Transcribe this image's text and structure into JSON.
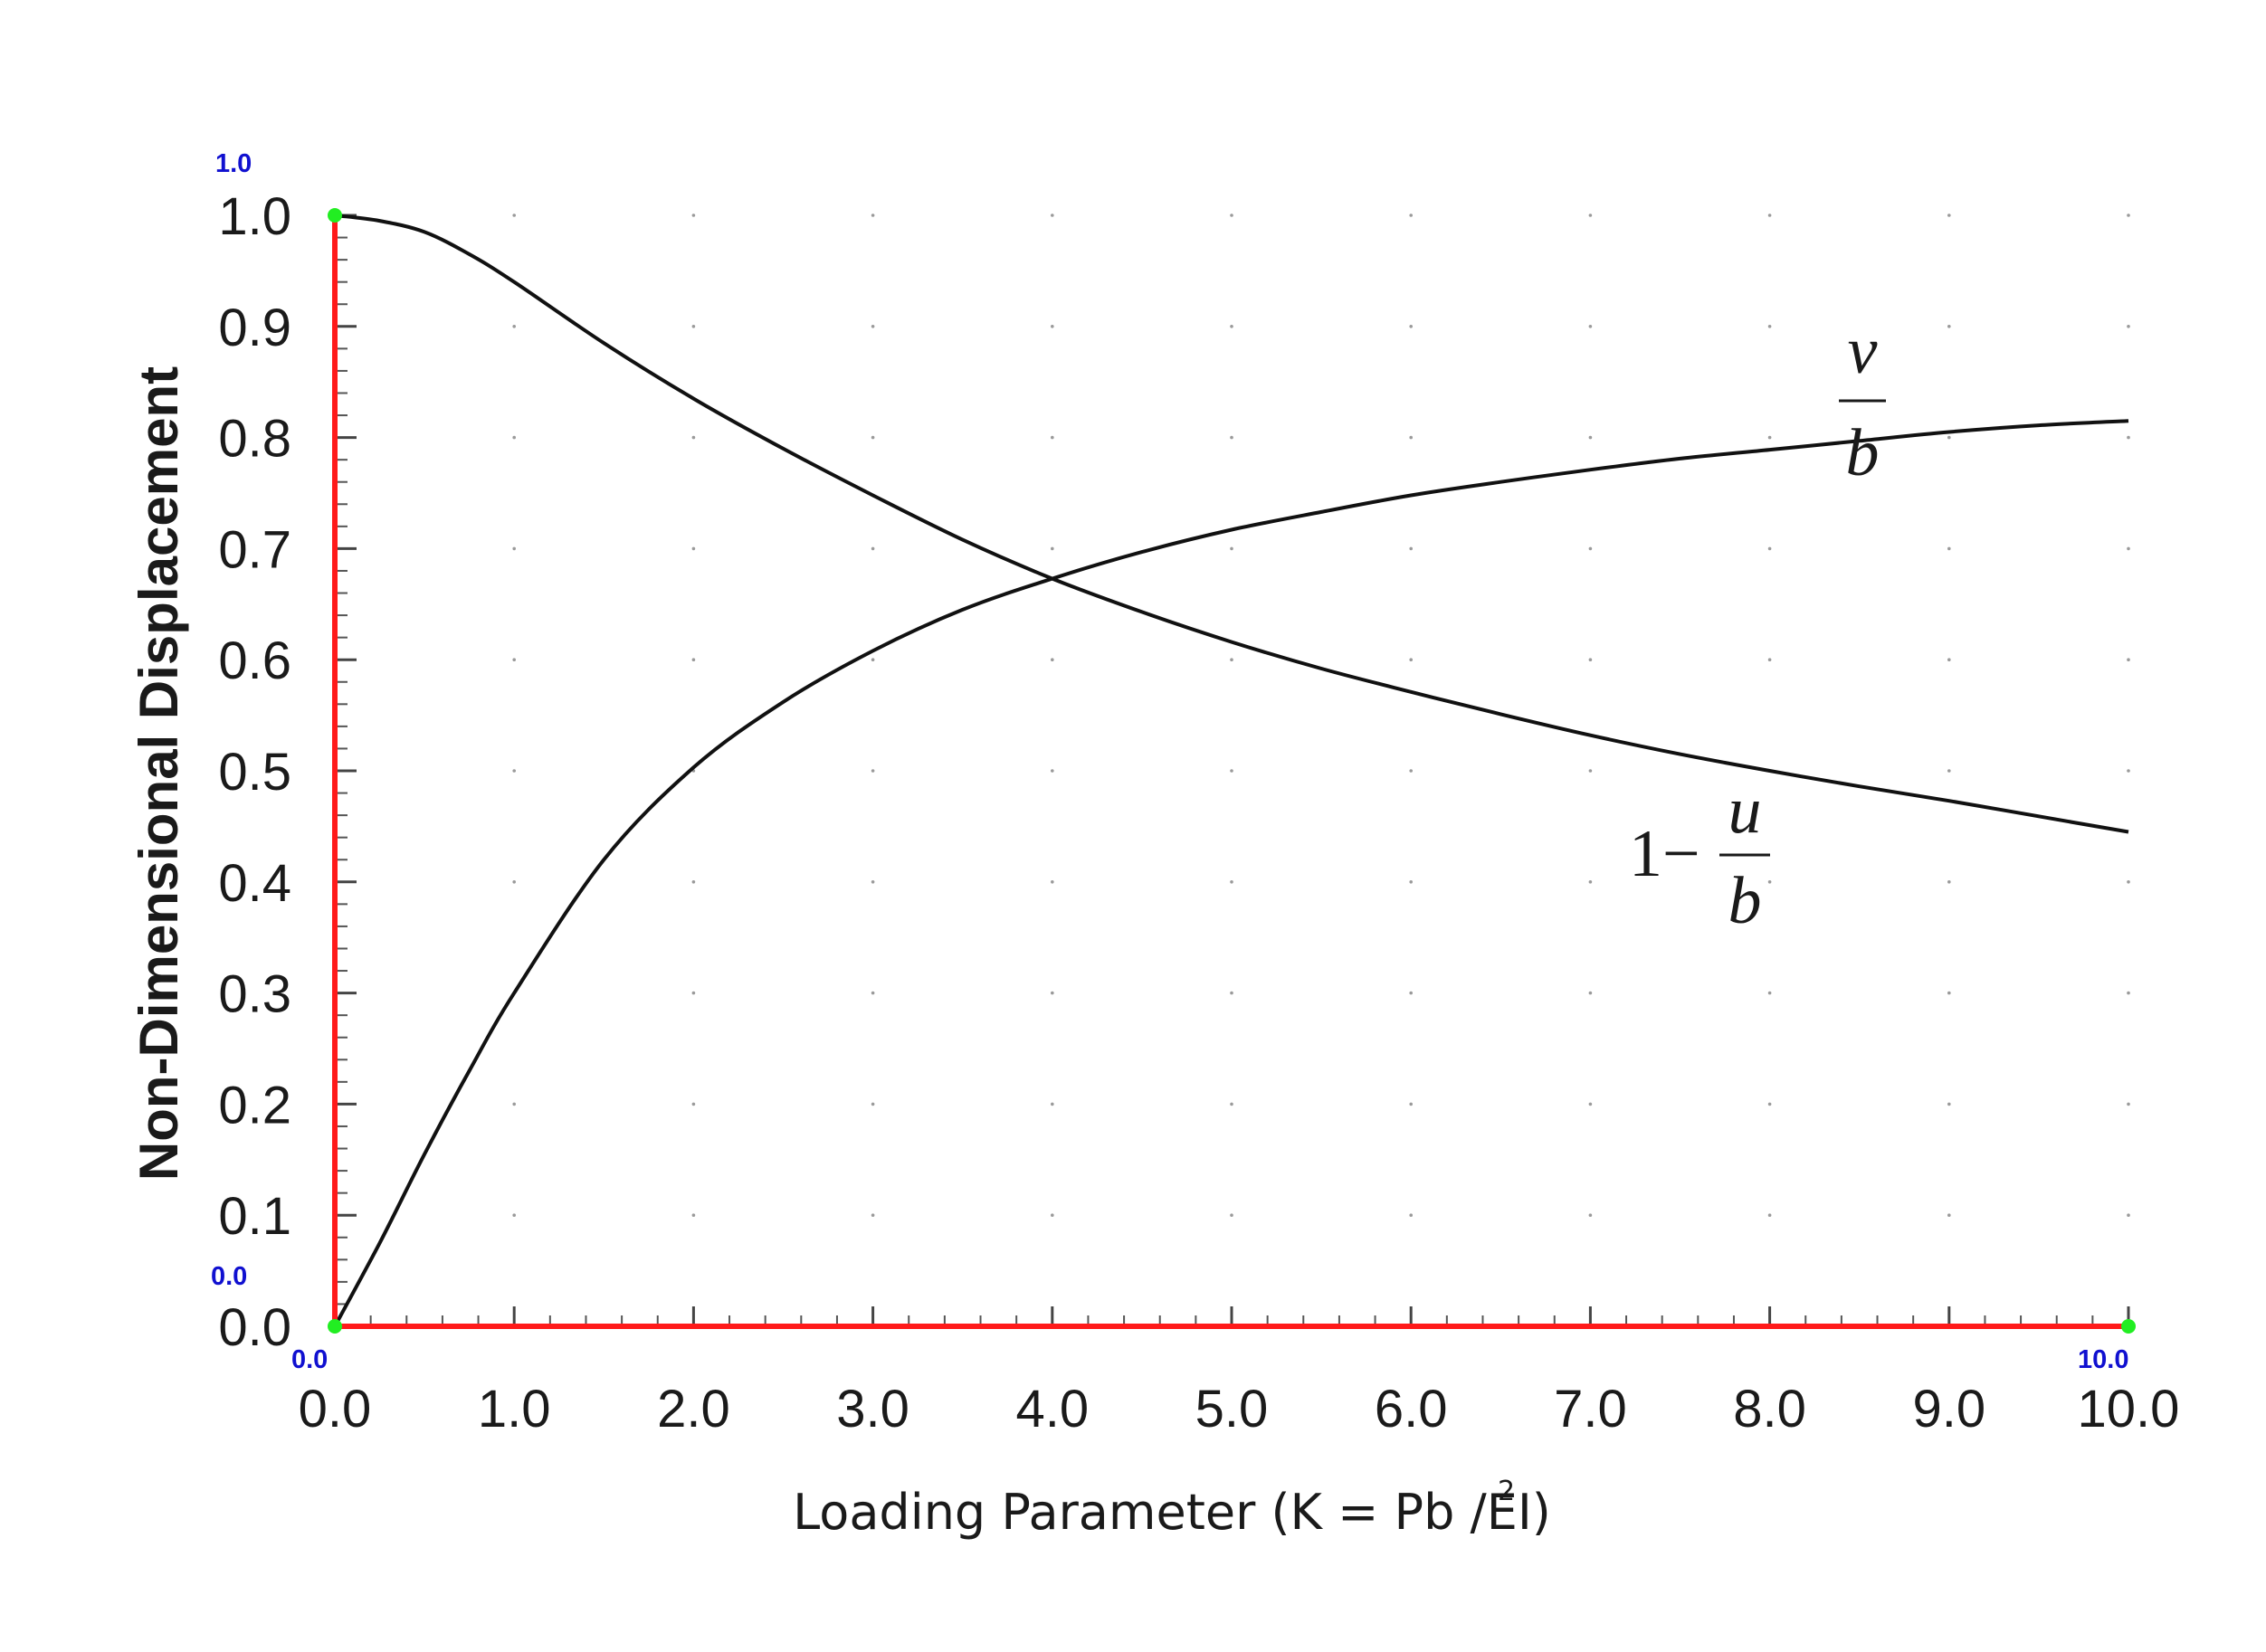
{
  "colors": {
    "curve": "#111111",
    "axis_highlight": "#ff1a1a",
    "calibration_point": "#22ee22",
    "calibration_label": "#1010d0",
    "grid_dot": "#9a9a9a"
  },
  "calibration_labels": {
    "y_top": "1.0",
    "y_bottom": "0.0",
    "x_left": "0.0",
    "x_right": "10.0"
  },
  "chart_data": {
    "type": "line",
    "xlabel": {
      "main": "Loading Parameter  (K = Pb  /EI)",
      "superscript": "2"
    },
    "ylabel": "Non-Dimensional Displacement",
    "xlim": [
      0,
      10
    ],
    "ylim": [
      0,
      1
    ],
    "x_ticks": [
      "0.0",
      "1.0",
      "2.0",
      "3.0",
      "4.0",
      "5.0",
      "6.0",
      "7.0",
      "8.0",
      "9.0",
      "10.0"
    ],
    "y_ticks": [
      "0.0",
      "0.1",
      "0.2",
      "0.3",
      "0.4",
      "0.5",
      "0.6",
      "0.7",
      "0.8",
      "0.9",
      "1.0"
    ],
    "grid": "dotted",
    "series": [
      {
        "label_lead": "1−",
        "label_numerator": "u",
        "label_denominator": "b",
        "x": [
          0,
          0.25,
          0.5,
          0.75,
          1.0,
          1.5,
          2.0,
          2.5,
          3.0,
          3.5,
          4.0,
          4.5,
          5.0,
          5.5,
          6.0,
          6.5,
          7.0,
          7.5,
          8.0,
          8.5,
          9.0,
          9.5,
          10.0
        ],
        "y": [
          1.0,
          0.995,
          0.985,
          0.965,
          0.94,
          0.885,
          0.835,
          0.79,
          0.748,
          0.708,
          0.673,
          0.643,
          0.616,
          0.592,
          0.571,
          0.551,
          0.532,
          0.515,
          0.5,
          0.486,
          0.473,
          0.459,
          0.445
        ]
      },
      {
        "label_numerator": "v",
        "label_denominator": "b",
        "x": [
          0,
          0.25,
          0.5,
          0.75,
          1.0,
          1.5,
          2.0,
          2.5,
          3.0,
          3.5,
          4.0,
          4.5,
          5.0,
          5.5,
          6.0,
          6.5,
          7.0,
          7.5,
          8.0,
          8.5,
          9.0,
          9.5,
          10.0
        ],
        "y": [
          0.0,
          0.075,
          0.155,
          0.23,
          0.3,
          0.42,
          0.503,
          0.562,
          0.608,
          0.645,
          0.673,
          0.697,
          0.717,
          0.733,
          0.748,
          0.76,
          0.771,
          0.781,
          0.789,
          0.797,
          0.805,
          0.811,
          0.815
        ]
      }
    ]
  }
}
